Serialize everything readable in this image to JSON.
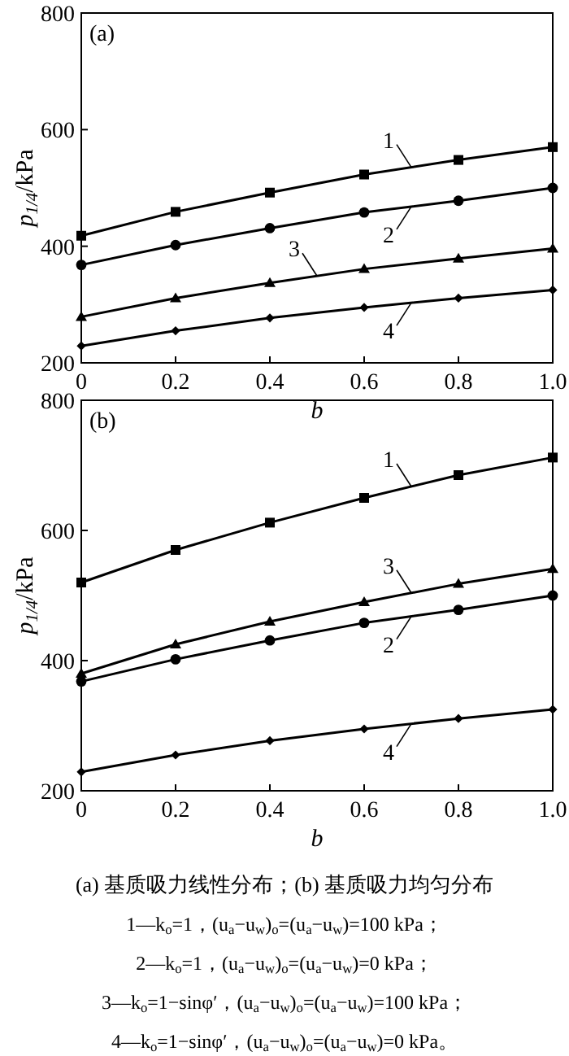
{
  "chart_data": [
    {
      "type": "line",
      "title": "(a)",
      "xlabel": "b",
      "ylabel": "p$_{1/4}$/kPa",
      "x": [
        0,
        0.2,
        0.4,
        0.6,
        0.8,
        1.0
      ],
      "xlim": [
        0,
        1.0
      ],
      "xticks": [
        0,
        0.2,
        0.4,
        0.6,
        0.8,
        {
          "value": 1.0,
          "label": "1.0"
        }
      ],
      "ylim": [
        200,
        800
      ],
      "yticks": [
        200,
        400,
        600,
        800
      ],
      "grid": false,
      "legend": "right",
      "series": [
        {
          "name": "1",
          "color": "#000000",
          "marker": "square",
          "values": [
            418,
            459,
            492,
            523,
            548,
            570
          ]
        },
        {
          "name": "2",
          "color": "#000000",
          "marker": "circle",
          "values": [
            368,
            402,
            431,
            458,
            478,
            500
          ]
        },
        {
          "name": "3",
          "color": "#000000",
          "marker": "triangle",
          "values": [
            279,
            311,
            337,
            361,
            379,
            396
          ]
        },
        {
          "name": "4",
          "color": "#000000",
          "marker": "diamond",
          "values": [
            229,
            255,
            277,
            295,
            311,
            325
          ]
        }
      ]
    },
    {
      "type": "line",
      "title": "(b)",
      "xlabel": "b",
      "ylabel": "p$_{1/4}$/kPa",
      "x": [
        0,
        0.2,
        0.4,
        0.6,
        0.8,
        1.0
      ],
      "xlim": [
        0,
        1.0
      ],
      "xticks": [
        0,
        0.2,
        0.4,
        0.6,
        0.8,
        {
          "value": 1.0,
          "label": "1.0"
        }
      ],
      "ylim": [
        200,
        800
      ],
      "yticks": [
        200,
        400,
        600,
        800
      ],
      "grid": false,
      "legend": "right",
      "series": [
        {
          "name": "1",
          "color": "#000000",
          "marker": "square",
          "values": [
            520,
            570,
            612,
            650,
            685,
            712
          ]
        },
        {
          "name": "2",
          "color": "#000000",
          "marker": "circle",
          "values": [
            368,
            402,
            431,
            458,
            478,
            500
          ]
        },
        {
          "name": "3",
          "color": "#000000",
          "marker": "triangle",
          "values": [
            380,
            425,
            460,
            490,
            518,
            541
          ]
        },
        {
          "name": "4",
          "color": "#000000",
          "marker": "diamond",
          "values": [
            229,
            255,
            277,
            295,
            311,
            325
          ]
        }
      ],
      "annotations": [
        "(a) 基质吸力线性分布；(b) 基质吸力均匀分布",
        "1—k$_{o}$=1，(u$_{a}$−u$_{w}$)$_{o}$=(u$_{a}$−u$_{w}$)=100 kPa；",
        "2—k$_{o}$=1，(u$_{a}$−u$_{w}$)$_{o}$=(u$_{a}$−u$_{w}$)=0 kPa；",
        "3—k$_{o}$=1−sinφ′，(u$_{a}$−u$_{w}$)$_{o}$=(u$_{a}$−u$_{w}$)=100 kPa；",
        "4—k$_{o}$=1−sinφ′，(u$_{a}$−u$_{w}$)$_{o}$=(u$_{a}$−u$_{w}$)=0 kPa。"
      ]
    }
  ]
}
